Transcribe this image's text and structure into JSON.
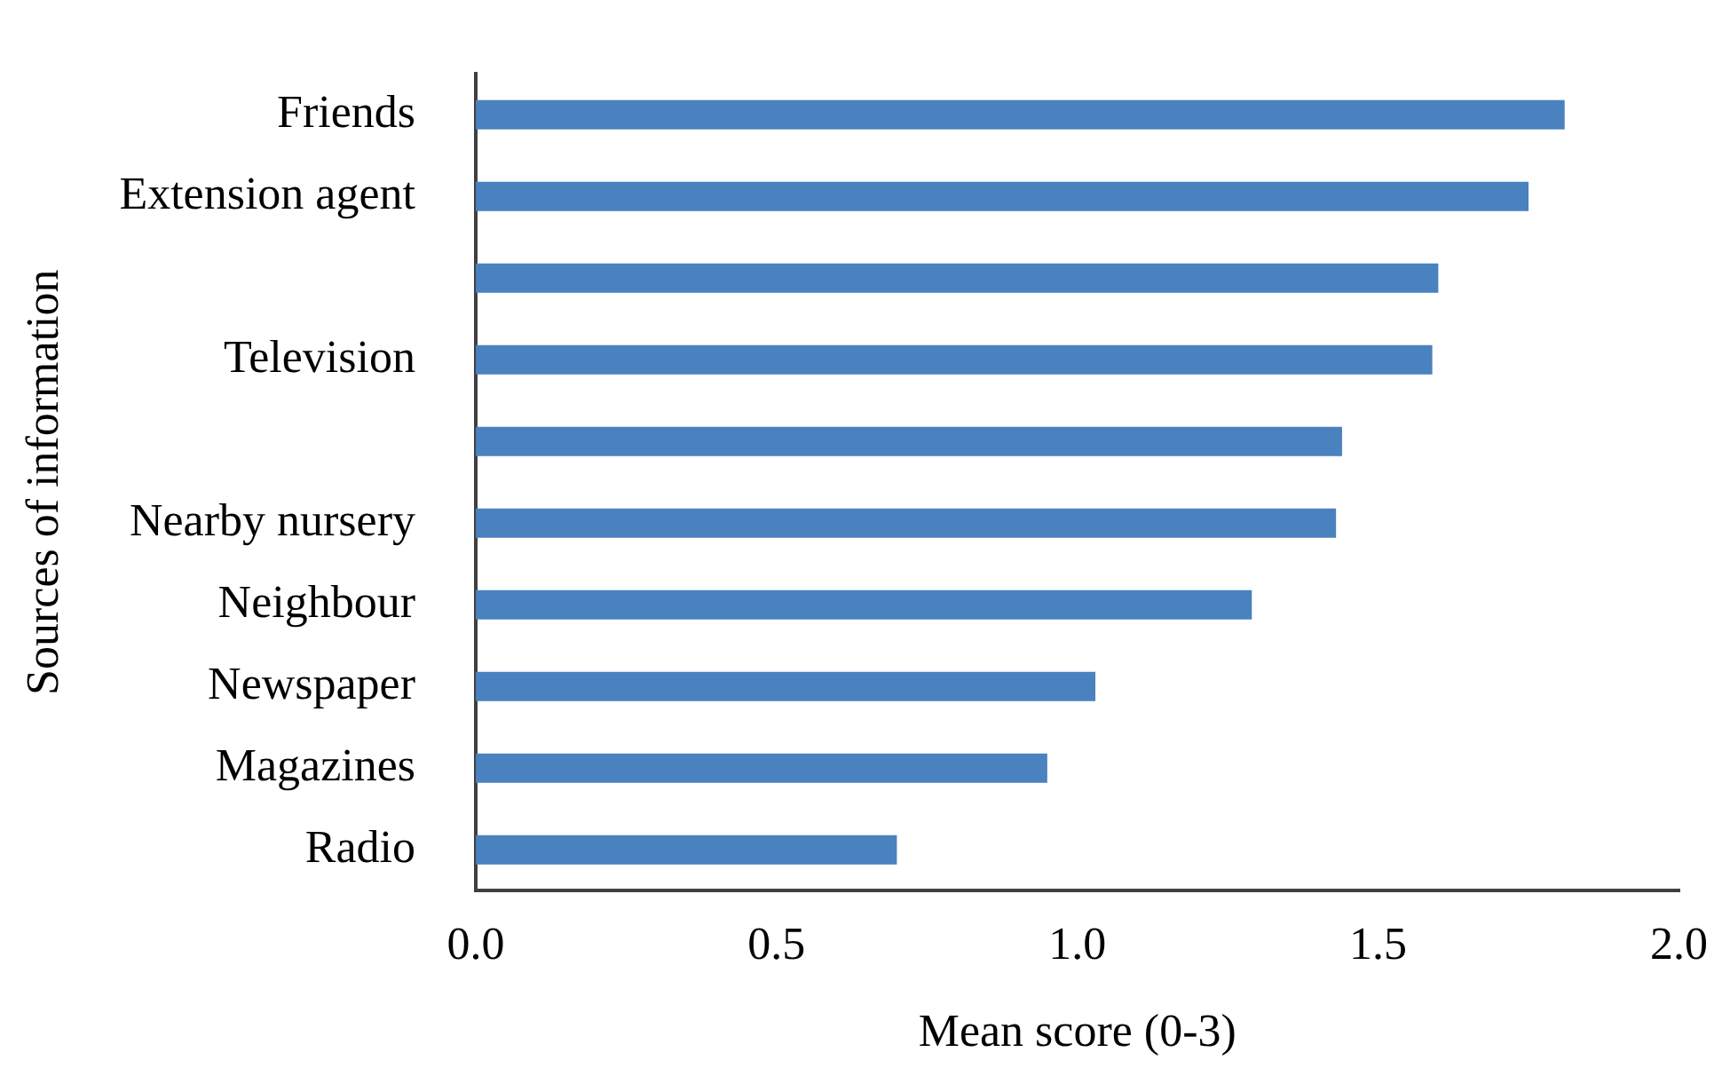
{
  "chart_data": {
    "type": "bar",
    "orientation": "horizontal",
    "xlabel": "Mean score (0-3)",
    "ylabel": "Sources of information",
    "categories": [
      "Friends",
      "Extension agent",
      null,
      "Television",
      null,
      "Nearby nursery",
      "Neighbour",
      "Newspaper",
      "Magazines",
      "Radio"
    ],
    "values": [
      1.81,
      1.75,
      1.6,
      1.59,
      1.44,
      1.43,
      1.29,
      1.03,
      0.95,
      0.7
    ],
    "color": "#4a81bf",
    "xlim": [
      0,
      2
    ],
    "xticks": [
      {
        "value": 0,
        "label": "0.0"
      },
      {
        "value": 0.5,
        "label": "0.5"
      },
      {
        "value": 1,
        "label": "1.0"
      },
      {
        "value": 1.5,
        "label": "1.5"
      },
      {
        "value": 2,
        "label": "2.0"
      }
    ],
    "grid": false,
    "legend": false
  }
}
